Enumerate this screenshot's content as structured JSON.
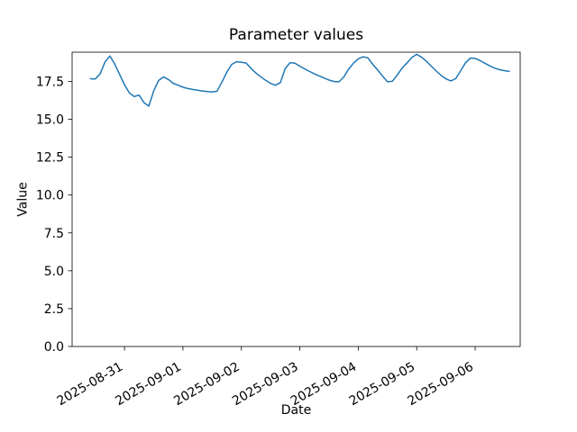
{
  "figure": {
    "title": "Parameter values",
    "xlabel": "Date",
    "ylabel": "Value",
    "background": "#ffffff"
  },
  "chart_data": {
    "type": "line",
    "title": "Parameter values",
    "xlabel": "Date",
    "ylabel": "Value",
    "grid": false,
    "legend": "none",
    "axis_color": "#000000",
    "xlim": [
      "2025-08-30T02:30",
      "2025-09-06T18:30"
    ],
    "ylim": [
      0,
      19.43
    ],
    "x_ticks": [
      "2025-08-31",
      "2025-09-01",
      "2025-09-02",
      "2025-09-03",
      "2025-09-04",
      "2025-09-05",
      "2025-09-06"
    ],
    "x_tick_rotation_deg": 30,
    "y_tick_labels": [
      "0.0",
      "2.5",
      "5.0",
      "7.5",
      "10.0",
      "12.5",
      "15.0",
      "17.5"
    ],
    "series": [
      {
        "name": "parameter",
        "color": "#1f77b4",
        "line_width": 1.5,
        "x": [
          "2025-08-30T10:00",
          "2025-08-30T12:00",
          "2025-08-30T14:00",
          "2025-08-30T16:00",
          "2025-08-30T18:00",
          "2025-08-30T20:00",
          "2025-08-30T22:00",
          "2025-08-31T00:00",
          "2025-08-31T02:00",
          "2025-08-31T04:00",
          "2025-08-31T06:00",
          "2025-08-31T08:00",
          "2025-08-31T10:00",
          "2025-08-31T12:00",
          "2025-08-31T14:00",
          "2025-08-31T16:00",
          "2025-08-31T18:00",
          "2025-08-31T20:00",
          "2025-08-31T22:00",
          "2025-09-01T00:00",
          "2025-09-01T02:00",
          "2025-09-01T04:00",
          "2025-09-01T06:00",
          "2025-09-01T08:00",
          "2025-09-01T10:00",
          "2025-09-01T12:00",
          "2025-09-01T14:00",
          "2025-09-01T16:00",
          "2025-09-01T18:00",
          "2025-09-01T20:00",
          "2025-09-01T22:00",
          "2025-09-02T00:00",
          "2025-09-02T02:00",
          "2025-09-02T04:00",
          "2025-09-02T06:00",
          "2025-09-02T08:00",
          "2025-09-02T10:00",
          "2025-09-02T12:00",
          "2025-09-02T14:00",
          "2025-09-02T16:00",
          "2025-09-02T18:00",
          "2025-09-02T20:00",
          "2025-09-02T22:00",
          "2025-09-03T00:00",
          "2025-09-03T02:00",
          "2025-09-03T04:00",
          "2025-09-03T06:00",
          "2025-09-03T08:00",
          "2025-09-03T10:00",
          "2025-09-03T12:00",
          "2025-09-03T14:00",
          "2025-09-03T16:00",
          "2025-09-03T18:00",
          "2025-09-03T20:00",
          "2025-09-03T22:00",
          "2025-09-04T00:00",
          "2025-09-04T02:00",
          "2025-09-04T04:00",
          "2025-09-04T06:00",
          "2025-09-04T08:00",
          "2025-09-04T10:00",
          "2025-09-04T12:00",
          "2025-09-04T14:00",
          "2025-09-04T16:00",
          "2025-09-04T18:00",
          "2025-09-04T20:00",
          "2025-09-04T22:00",
          "2025-09-05T00:00",
          "2025-09-05T02:00",
          "2025-09-05T04:00",
          "2025-09-05T06:00",
          "2025-09-05T08:00",
          "2025-09-05T10:00",
          "2025-09-05T12:00",
          "2025-09-05T14:00",
          "2025-09-05T16:00",
          "2025-09-05T18:00",
          "2025-09-05T20:00",
          "2025-09-05T22:00",
          "2025-09-06T00:00",
          "2025-09-06T02:00",
          "2025-09-06T04:00",
          "2025-09-06T06:00",
          "2025-09-06T08:00",
          "2025-09-06T10:00",
          "2025-09-06T12:00",
          "2025-09-06T14:00"
        ],
        "values": [
          17.68,
          17.66,
          18.0,
          18.78,
          19.18,
          18.65,
          17.96,
          17.29,
          16.74,
          16.5,
          16.6,
          16.1,
          15.87,
          16.87,
          17.56,
          17.8,
          17.63,
          17.38,
          17.25,
          17.12,
          17.03,
          16.97,
          16.92,
          16.87,
          16.83,
          16.81,
          16.85,
          17.45,
          18.1,
          18.62,
          18.8,
          18.77,
          18.71,
          18.35,
          18.05,
          17.8,
          17.57,
          17.37,
          17.25,
          17.42,
          18.35,
          18.74,
          18.7,
          18.51,
          18.33,
          18.16,
          18.0,
          17.86,
          17.72,
          17.59,
          17.5,
          17.47,
          17.78,
          18.3,
          18.7,
          18.99,
          19.13,
          19.05,
          18.62,
          18.25,
          17.85,
          17.48,
          17.51,
          17.92,
          18.38,
          18.72,
          19.08,
          19.29,
          19.1,
          18.83,
          18.51,
          18.19,
          17.9,
          17.67,
          17.53,
          17.68,
          18.19,
          18.72,
          19.04,
          19.02,
          18.88,
          18.7,
          18.53,
          18.38,
          18.28,
          18.21,
          18.16
        ]
      }
    ]
  }
}
